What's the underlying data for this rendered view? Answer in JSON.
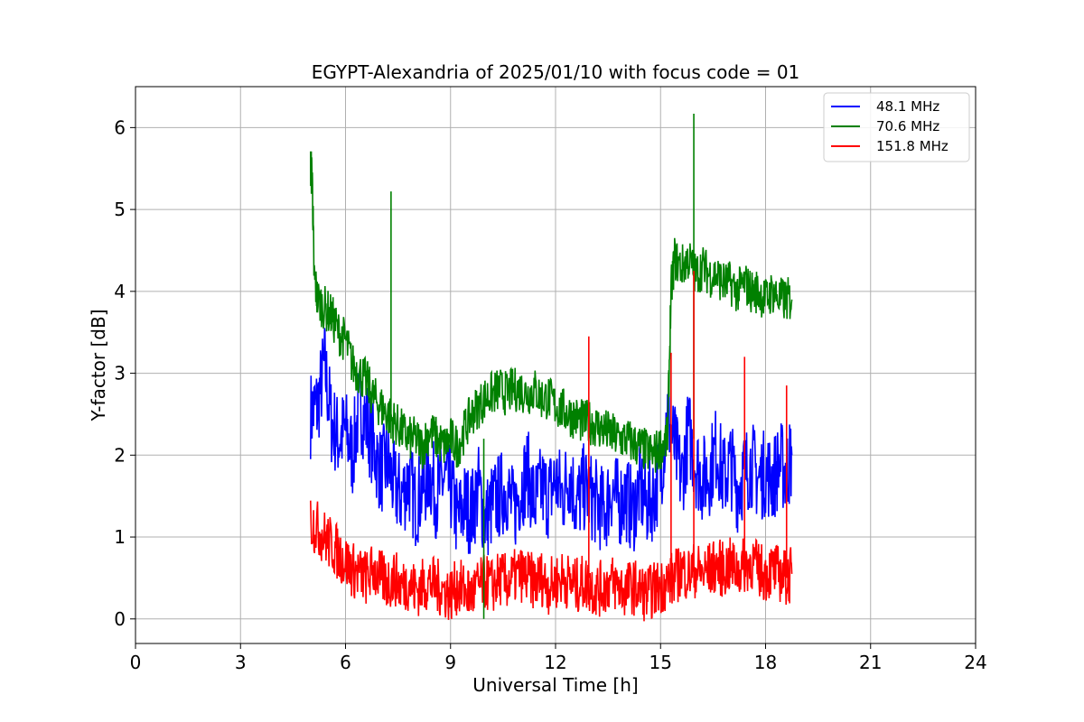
{
  "chart_data": {
    "type": "line",
    "title": "EGYPT-Alexandria of 2025/01/10 with focus code = 01",
    "xlabel": "Universal Time [h]",
    "ylabel": "Y-factor [dB]",
    "xlim": [
      0,
      24
    ],
    "ylim": [
      -0.3,
      6.5
    ],
    "xticks": [
      0,
      3,
      6,
      9,
      12,
      15,
      18,
      21,
      24
    ],
    "yticks": [
      0,
      1,
      2,
      3,
      4,
      5,
      6
    ],
    "grid": true,
    "legend_position": "top-right",
    "series": [
      {
        "name": " 48.1 MHz",
        "color": "#0000ff",
        "x": [
          5.0,
          5.2,
          5.4,
          5.6,
          5.8,
          6.0,
          6.2,
          6.4,
          6.6,
          6.8,
          7.0,
          7.2,
          7.4,
          7.6,
          7.8,
          8.0,
          8.2,
          8.4,
          8.6,
          8.8,
          9.0,
          9.2,
          9.4,
          9.6,
          9.8,
          10.0,
          10.2,
          10.4,
          10.6,
          10.8,
          11.0,
          11.2,
          11.4,
          11.6,
          11.8,
          12.0,
          12.2,
          12.4,
          12.6,
          12.8,
          13.0,
          13.2,
          13.4,
          13.6,
          13.8,
          14.0,
          14.2,
          14.4,
          14.6,
          14.8,
          15.0,
          15.2,
          15.4,
          15.6,
          15.8,
          16.0,
          16.2,
          16.4,
          16.6,
          16.8,
          17.0,
          17.2,
          17.4,
          17.6,
          17.8,
          18.0,
          18.2,
          18.4,
          18.6,
          18.75
        ],
        "y": [
          2.5,
          2.6,
          3.1,
          2.4,
          2.2,
          2.3,
          2.0,
          2.6,
          2.4,
          2.1,
          1.8,
          1.9,
          1.6,
          1.5,
          1.7,
          1.4,
          1.6,
          1.8,
          1.5,
          1.7,
          1.6,
          1.2,
          1.4,
          1.3,
          1.6,
          1.2,
          1.4,
          1.5,
          1.6,
          1.3,
          1.6,
          1.8,
          1.4,
          1.6,
          1.5,
          1.7,
          1.5,
          1.8,
          1.4,
          1.6,
          1.5,
          1.4,
          1.3,
          1.6,
          1.4,
          1.5,
          1.3,
          1.6,
          1.4,
          1.5,
          1.8,
          2.5,
          2.1,
          1.7,
          2.3,
          1.9,
          1.7,
          1.8,
          2.1,
          1.7,
          1.9,
          1.6,
          1.8,
          1.9,
          1.7,
          1.8,
          1.7,
          1.9,
          1.8,
          2.0
        ]
      },
      {
        "name": " 70.6 MHz",
        "color": "#008000",
        "x": [
          5.0,
          5.05,
          5.1,
          5.2,
          5.4,
          5.6,
          5.8,
          6.0,
          6.2,
          6.4,
          6.6,
          6.8,
          7.0,
          7.2,
          7.4,
          7.6,
          7.8,
          8.0,
          8.2,
          8.4,
          8.6,
          8.8,
          9.0,
          9.2,
          9.4,
          9.6,
          9.8,
          10.0,
          10.2,
          10.4,
          10.6,
          10.8,
          11.0,
          11.2,
          11.4,
          11.6,
          11.8,
          12.0,
          12.2,
          12.4,
          12.6,
          12.8,
          13.0,
          13.2,
          13.4,
          13.6,
          13.8,
          14.0,
          14.2,
          14.4,
          14.6,
          14.8,
          15.0,
          15.2,
          15.3,
          15.4,
          15.6,
          15.8,
          16.0,
          16.2,
          16.4,
          16.6,
          16.8,
          17.0,
          17.2,
          17.4,
          17.6,
          17.8,
          18.0,
          18.2,
          18.4,
          18.6,
          18.75
        ],
        "y": [
          5.5,
          5.4,
          4.2,
          3.9,
          3.8,
          3.7,
          3.5,
          3.4,
          3.1,
          3.0,
          2.9,
          2.7,
          2.6,
          2.5,
          2.4,
          2.3,
          2.2,
          2.2,
          2.1,
          2.3,
          2.2,
          2.1,
          2.2,
          2.1,
          2.3,
          2.5,
          2.6,
          2.7,
          2.75,
          2.8,
          2.75,
          2.8,
          2.8,
          2.75,
          2.8,
          2.7,
          2.7,
          2.6,
          2.55,
          2.5,
          2.45,
          2.4,
          2.4,
          2.35,
          2.3,
          2.25,
          2.2,
          2.2,
          2.15,
          2.1,
          2.05,
          2.0,
          2.1,
          2.2,
          4.0,
          4.4,
          4.3,
          4.4,
          4.2,
          4.3,
          4.2,
          4.2,
          4.1,
          4.1,
          4.0,
          4.1,
          4.0,
          4.0,
          3.9,
          4.0,
          3.9,
          3.9,
          3.9
        ]
      },
      {
        "name": "151.8 MHz",
        "color": "#ff0000",
        "x": [
          5.0,
          5.2,
          5.4,
          5.6,
          5.8,
          6.0,
          6.2,
          6.4,
          6.6,
          6.8,
          7.0,
          7.2,
          7.4,
          7.6,
          7.8,
          8.0,
          8.2,
          8.4,
          8.6,
          8.8,
          9.0,
          9.2,
          9.4,
          9.6,
          9.8,
          10.0,
          10.2,
          10.4,
          10.6,
          10.8,
          11.0,
          11.2,
          11.4,
          11.6,
          11.8,
          12.0,
          12.2,
          12.4,
          12.6,
          12.8,
          13.0,
          13.2,
          13.4,
          13.6,
          13.8,
          14.0,
          14.2,
          14.4,
          14.6,
          14.8,
          15.0,
          15.2,
          15.4,
          15.6,
          15.8,
          16.0,
          16.2,
          16.4,
          16.6,
          16.8,
          17.0,
          17.2,
          17.4,
          17.6,
          17.8,
          18.0,
          18.2,
          18.4,
          18.6,
          18.75
        ],
        "y": [
          1.2,
          1.1,
          1.0,
          0.9,
          0.8,
          0.7,
          0.6,
          0.55,
          0.5,
          0.6,
          0.5,
          0.45,
          0.5,
          0.4,
          0.45,
          0.35,
          0.4,
          0.45,
          0.4,
          0.35,
          0.3,
          0.4,
          0.35,
          0.3,
          0.4,
          0.45,
          0.4,
          0.5,
          0.45,
          0.5,
          0.55,
          0.5,
          0.45,
          0.5,
          0.4,
          0.45,
          0.5,
          0.45,
          0.4,
          0.45,
          0.4,
          0.35,
          0.4,
          0.45,
          0.4,
          0.35,
          0.4,
          0.35,
          0.3,
          0.35,
          0.4,
          0.45,
          0.5,
          0.6,
          0.55,
          0.6,
          0.55,
          0.6,
          0.65,
          0.6,
          0.65,
          0.6,
          0.65,
          0.7,
          0.6,
          0.55,
          0.6,
          0.55,
          0.5,
          0.55
        ]
      }
    ],
    "annotations": [
      {
        "series": 1,
        "x": 7.3,
        "peak": 5.22
      },
      {
        "series": 1,
        "x": 15.95,
        "peak": 6.17
      },
      {
        "series": 1,
        "x": 9.95,
        "peak": 0.0
      },
      {
        "series": 2,
        "x": 12.95,
        "peak": 3.45
      },
      {
        "series": 2,
        "x": 15.95,
        "peak": 4.25
      },
      {
        "series": 2,
        "x": 17.4,
        "peak": 3.2
      },
      {
        "series": 2,
        "x": 15.3,
        "peak": 3.25
      },
      {
        "series": 2,
        "x": 18.6,
        "peak": 2.85
      }
    ]
  }
}
